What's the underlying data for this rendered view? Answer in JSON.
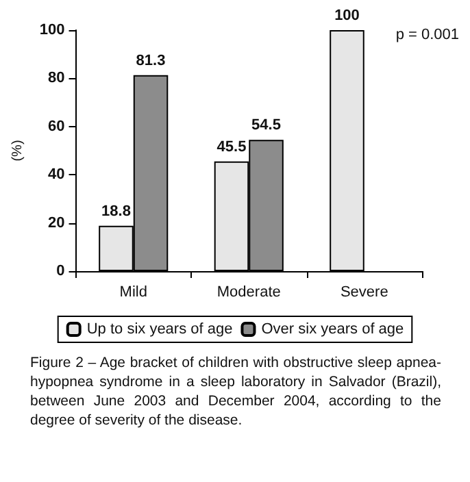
{
  "chart_data": {
    "type": "bar",
    "ylabel": "(%)",
    "categories": [
      "Mild",
      "Moderate",
      "Severe"
    ],
    "series": [
      {
        "name": "Up to six years of age",
        "color": "#e6e6e6",
        "values": [
          18.8,
          45.5,
          100
        ]
      },
      {
        "name": "Over six years of age",
        "color": "#8c8c8c",
        "values": [
          81.3,
          54.5,
          null
        ]
      }
    ],
    "ylim": [
      0,
      100
    ],
    "yticks": [
      0,
      20,
      40,
      60,
      80,
      100
    ],
    "grid": false,
    "legend": "bottom",
    "data_labels": true,
    "annotations": [
      "p = 0.001",
      "Figure 2 – Age bracket of children with obstructive sleep apnea-hypopnea syndrome in a sleep laboratory in Salvador (Brazil), between June 2003 and December 2004, according to the degree of severity of the disease."
    ]
  }
}
